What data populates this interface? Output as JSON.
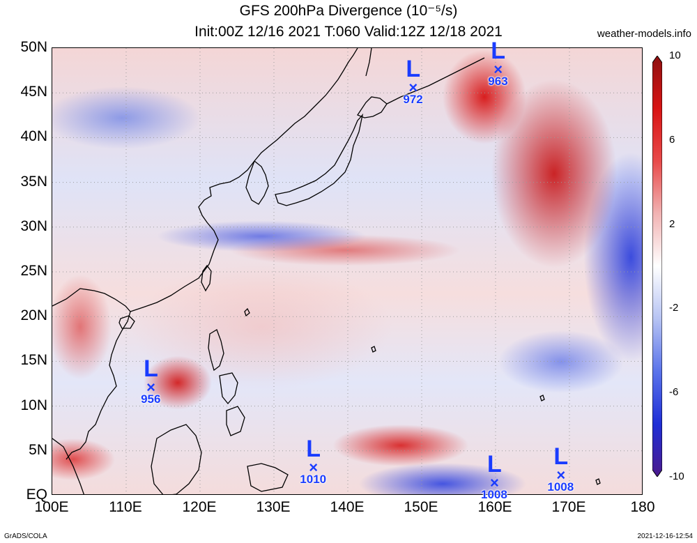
{
  "header": {
    "title_line1": "GFS 200hPa Divergence (10⁻⁵/s)",
    "title_line2": "Init:00Z 12/16 2021 T:060 Valid:12Z 12/18 2021",
    "site": "weather-models.info"
  },
  "footer": {
    "left": "GrADS/COLA",
    "right": "2021-12-16-12:54"
  },
  "axes": {
    "y_ticks": [
      "50N",
      "45N",
      "40N",
      "35N",
      "30N",
      "25N",
      "20N",
      "15N",
      "10N",
      "5N",
      "EQ"
    ],
    "x_ticks": [
      "100E",
      "110E",
      "120E",
      "130E",
      "140E",
      "150E",
      "160E",
      "170E",
      "180"
    ]
  },
  "colorbar": {
    "ticks": [
      "10",
      "6",
      "2",
      "-2",
      "-6",
      "-10"
    ],
    "colors": [
      "#4b1a8c",
      "#1f2ed6",
      "#5a73ea",
      "#b6c3f3",
      "#ffffff",
      "#f1b3b3",
      "#e84a4a",
      "#d81414",
      "#8e1010"
    ]
  },
  "lows": [
    {
      "label": "L",
      "pressure": "956",
      "lon": 113.5,
      "lat": 12
    },
    {
      "label": "L",
      "pressure": "972",
      "lon": 149,
      "lat": 45.5
    },
    {
      "label": "L",
      "pressure": "963",
      "lon": 160.5,
      "lat": 47.5
    },
    {
      "label": "L",
      "pressure": "1010",
      "lon": 135.5,
      "lat": 3
    },
    {
      "label": "L",
      "pressure": "1008",
      "lon": 160,
      "lat": 1.3
    },
    {
      "label": "L",
      "pressure": "1008",
      "lon": 169,
      "lat": 2.2
    }
  ]
}
